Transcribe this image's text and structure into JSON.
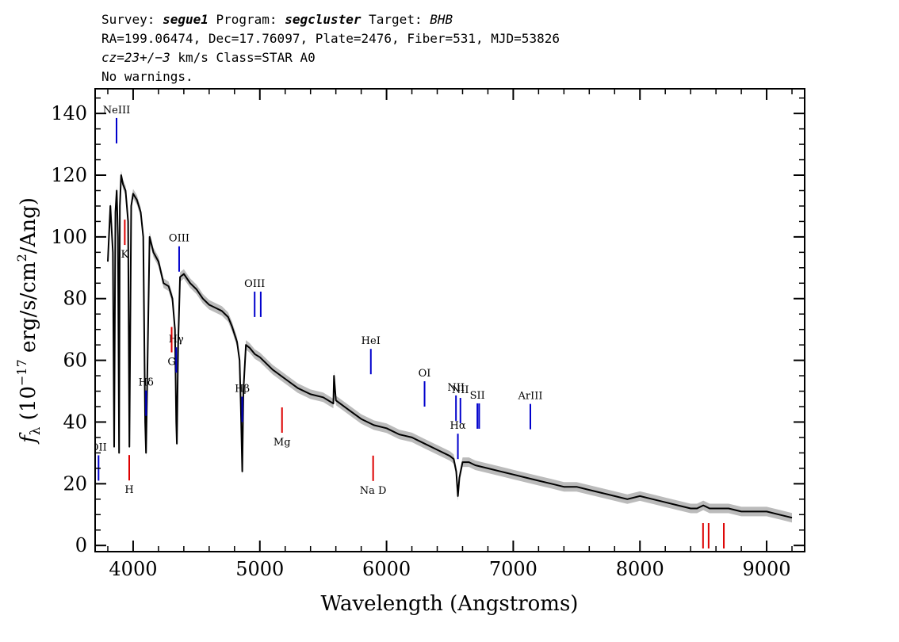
{
  "header": {
    "line1": {
      "survey_label": "Survey: ",
      "survey": "segue1",
      "program_label": " Program: ",
      "program": "segcluster",
      "target_label": " Target: ",
      "target": "BHB"
    },
    "line2": "RA=199.06474, Dec=17.76097, Plate=2476, Fiber=531, MJD=53826",
    "line3": {
      "cz": "cz=23+/−3",
      "rest": " km/s Class=STAR A0"
    },
    "line4": "No warnings."
  },
  "chart_data": {
    "type": "line",
    "xlabel": "Wavelength (Angstroms)",
    "ylabel": {
      "f": "f",
      "sub": "λ",
      "pre": " (10",
      "exp": "−17",
      "mid": " erg/s/cm",
      "exp2": "2",
      "post": "/Ang)"
    },
    "xlim": [
      3700,
      9300
    ],
    "ylim": [
      -2,
      148
    ],
    "x_ticks": [
      4000,
      5000,
      6000,
      7000,
      8000,
      9000
    ],
    "y_ticks": [
      0,
      20,
      40,
      60,
      80,
      100,
      120,
      140
    ],
    "grid": false,
    "colors": {
      "flux": "#000000",
      "error_band": "#bbbbbb",
      "emission": "#0000cc",
      "absorption": "#dd0000"
    },
    "series": [
      {
        "x": [
          3800,
          3820,
          3840,
          3850,
          3860,
          3870,
          3880,
          3889,
          3895,
          3905,
          3920,
          3940,
          3960,
          3970,
          3985,
          4000,
          4030,
          4060,
          4080,
          4095,
          4102,
          4110,
          4130,
          4160,
          4200,
          4240,
          4280,
          4310,
          4330,
          4340,
          4345,
          4355,
          4370,
          4400,
          4450,
          4500,
          4550,
          4600,
          4650,
          4700,
          4750,
          4780,
          4820,
          4840,
          4850,
          4861,
          4870,
          4890,
          4920,
          4960,
          5000,
          5100,
          5200,
          5300,
          5400,
          5500,
          5580,
          5585,
          5600,
          5700,
          5800,
          5900,
          6000,
          6100,
          6200,
          6300,
          6400,
          6500,
          6530,
          6550,
          6563,
          6575,
          6600,
          6650,
          6700,
          6800,
          6900,
          7000,
          7100,
          7200,
          7300,
          7400,
          7500,
          7600,
          7700,
          7800,
          7900,
          8000,
          8100,
          8200,
          8300,
          8400,
          8450,
          8500,
          8550,
          8600,
          8700,
          8800,
          8900,
          9000,
          9100,
          9200
        ],
        "y": [
          92,
          110,
          95,
          32,
          108,
          115,
          100,
          30,
          110,
          120,
          117,
          115,
          105,
          32,
          110,
          114,
          112,
          108,
          100,
          40,
          30,
          50,
          100,
          95,
          92,
          85,
          84,
          80,
          70,
          40,
          33,
          65,
          87,
          88,
          85,
          83,
          80,
          78,
          77,
          76,
          74,
          71,
          66,
          60,
          45,
          24,
          50,
          65,
          64,
          62,
          61,
          57,
          54,
          51,
          49,
          48,
          46,
          55,
          47,
          44,
          41,
          39,
          38,
          36,
          35,
          33,
          31,
          29,
          28,
          24,
          16,
          22,
          27,
          27,
          26,
          25,
          24,
          23,
          22,
          21,
          20,
          19,
          19,
          18,
          17,
          16,
          15,
          16,
          15,
          14,
          13,
          12,
          12,
          13,
          12,
          12,
          12,
          11,
          11,
          11,
          10,
          9
        ]
      }
    ],
    "emission_lines": [
      {
        "label": "OII",
        "x": 3727
      },
      {
        "label": "NeIII",
        "x": 3869
      },
      {
        "label": "Hδ",
        "x": 4102
      },
      {
        "label": "Hγ",
        "x": 4340
      },
      {
        "label": "OIII",
        "x": 4363
      },
      {
        "label": "Hβ",
        "x": 4861
      },
      {
        "label": "OIII",
        "x": 4959,
        "x2": 5007
      },
      {
        "label": "HeI",
        "x": 5876
      },
      {
        "label": "OI",
        "x": 6300
      },
      {
        "label": "NII",
        "x": 6548
      },
      {
        "label": "Hα",
        "x": 6563
      },
      {
        "label": "NII",
        "x": 6583
      },
      {
        "label": "SII",
        "x": 6717,
        "x2": 6731
      },
      {
        "label": "ArIII",
        "x": 7135
      }
    ],
    "absorption_lines": [
      {
        "label": "K",
        "x": 3934
      },
      {
        "label": "H",
        "x": 3969
      },
      {
        "label": "G",
        "x": 4304
      },
      {
        "label": "Mg",
        "x": 5175
      },
      {
        "label": "Na D",
        "x": 5894
      },
      {
        "label": "",
        "x": 8498
      },
      {
        "label": "",
        "x": 8542
      },
      {
        "label": "",
        "x": 8662
      }
    ]
  }
}
